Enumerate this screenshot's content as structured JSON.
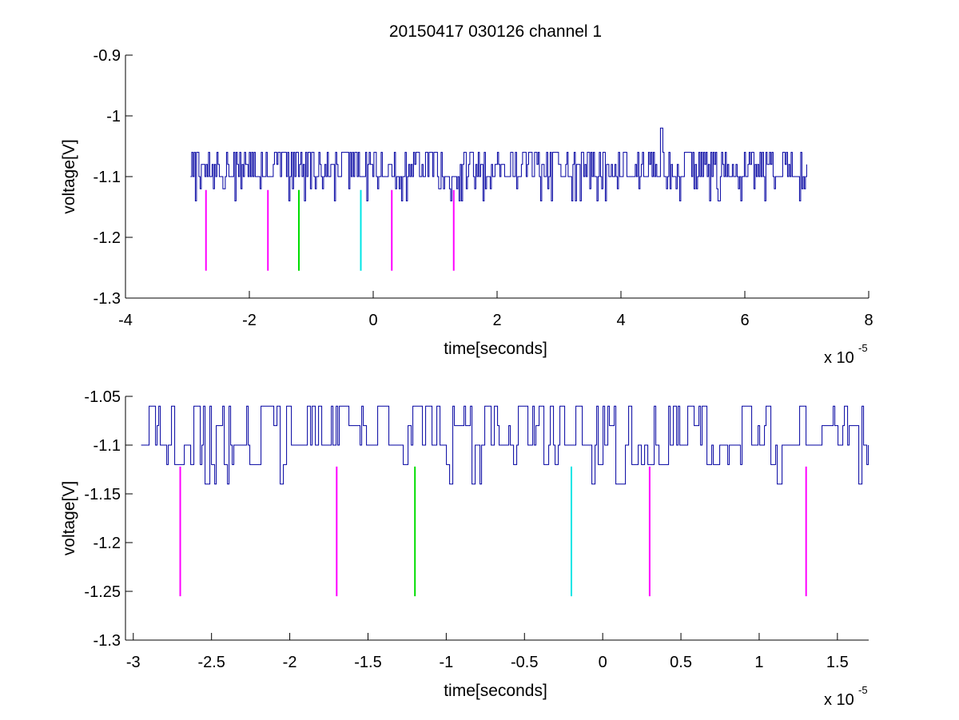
{
  "title": "20150417 030126 channel 1",
  "chart_data": [
    {
      "type": "line",
      "xlabel": "time[seconds]",
      "ylabel": "voltage[V]",
      "x_exponent_label": "x 10",
      "x_exponent": "-5",
      "xlim": [
        -4,
        8
      ],
      "ylim": [
        -1.3,
        -0.9
      ],
      "xticks": [
        "-4",
        "-2",
        "0",
        "2",
        "4",
        "6",
        "8"
      ],
      "xtick_values": [
        -4,
        -2,
        0,
        2,
        4,
        6,
        8
      ],
      "yticks": [
        "-1.3",
        "-1.2",
        "-1.1",
        "-1",
        "-0.9"
      ],
      "ytick_values": [
        -1.3,
        -1.2,
        -1.1,
        -1.0,
        -0.9
      ],
      "grid": false,
      "signal": {
        "color": "#0000a0",
        "x_range": [
          -2.95,
          7.0
        ],
        "baseline": -1.1,
        "levels": [
          -1.14,
          -1.12,
          -1.1,
          -1.08,
          -1.06
        ],
        "spike": {
          "x": 4.65,
          "y": -1.02
        }
      },
      "markers": [
        {
          "x": -2.7,
          "y_top": -1.122,
          "y_bottom": -1.255,
          "color": "#ff00ff"
        },
        {
          "x": -1.7,
          "y_top": -1.122,
          "y_bottom": -1.255,
          "color": "#ff00ff"
        },
        {
          "x": -1.2,
          "y_top": -1.122,
          "y_bottom": -1.255,
          "color": "#00dd00"
        },
        {
          "x": -0.2,
          "y_top": -1.122,
          "y_bottom": -1.255,
          "color": "#00e5e5"
        },
        {
          "x": 0.3,
          "y_top": -1.122,
          "y_bottom": -1.255,
          "color": "#ff00ff"
        },
        {
          "x": 1.3,
          "y_top": -1.122,
          "y_bottom": -1.255,
          "color": "#ff00ff"
        }
      ]
    },
    {
      "type": "line",
      "xlabel": "time[seconds]",
      "ylabel": "voltage[V]",
      "x_exponent_label": "x 10",
      "x_exponent": "-5",
      "xlim": [
        -3.05,
        1.7
      ],
      "ylim": [
        -1.3,
        -1.05
      ],
      "xticks": [
        "-3",
        "-2.5",
        "-2",
        "-1.5",
        "-1",
        "-0.5",
        "0",
        "0.5",
        "1",
        "1.5"
      ],
      "xtick_values": [
        -3,
        -2.5,
        -2,
        -1.5,
        -1,
        -0.5,
        0,
        0.5,
        1,
        1.5
      ],
      "yticks": [
        "-1.3",
        "-1.25",
        "-1.2",
        "-1.15",
        "-1.1",
        "-1.05"
      ],
      "ytick_values": [
        -1.3,
        -1.25,
        -1.2,
        -1.15,
        -1.1,
        -1.05
      ],
      "grid": false,
      "signal": {
        "color": "#0000a0",
        "x_range": [
          -2.95,
          1.7
        ],
        "baseline": -1.1,
        "levels": [
          -1.14,
          -1.12,
          -1.1,
          -1.08,
          -1.06
        ]
      },
      "markers": [
        {
          "x": -2.7,
          "y_top": -1.122,
          "y_bottom": -1.255,
          "color": "#ff00ff"
        },
        {
          "x": -1.7,
          "y_top": -1.122,
          "y_bottom": -1.255,
          "color": "#ff00ff"
        },
        {
          "x": -1.2,
          "y_top": -1.122,
          "y_bottom": -1.255,
          "color": "#00dd00"
        },
        {
          "x": -0.2,
          "y_top": -1.122,
          "y_bottom": -1.255,
          "color": "#00e5e5"
        },
        {
          "x": 0.3,
          "y_top": -1.122,
          "y_bottom": -1.255,
          "color": "#ff00ff"
        },
        {
          "x": 1.3,
          "y_top": -1.122,
          "y_bottom": -1.255,
          "color": "#ff00ff"
        }
      ]
    }
  ]
}
